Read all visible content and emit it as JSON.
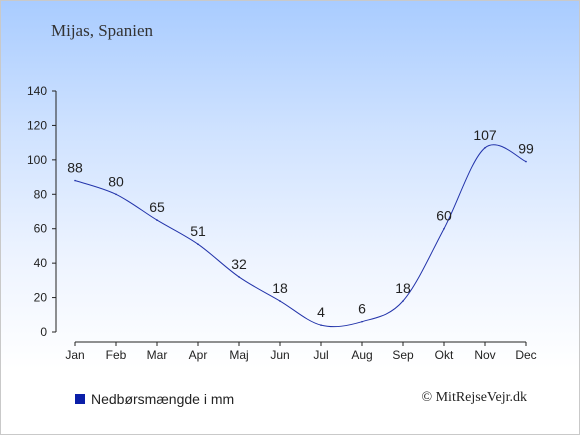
{
  "location_title": "Mijas, Spanien",
  "legend_label": "Nedbørsmængde i mm",
  "copyright": "© MitRejseVejr.dk",
  "colors": {
    "series_line": "#2233aa",
    "legend_swatch": "#0b1fa8",
    "axis": "#222222"
  },
  "chart_data": {
    "type": "line",
    "categories": [
      "Jan",
      "Feb",
      "Mar",
      "Apr",
      "Maj",
      "Jun",
      "Jul",
      "Aug",
      "Sep",
      "Okt",
      "Nov",
      "Dec"
    ],
    "series": [
      {
        "name": "Nedbørsmængde i mm",
        "values": [
          88,
          80,
          65,
          51,
          32,
          18,
          4,
          6,
          18,
          60,
          107,
          99
        ]
      }
    ],
    "ylim": [
      0,
      140
    ],
    "yticks": [
      0,
      20,
      40,
      60,
      80,
      100,
      120,
      140
    ],
    "grid": false,
    "legend_position": "bottom-left"
  }
}
